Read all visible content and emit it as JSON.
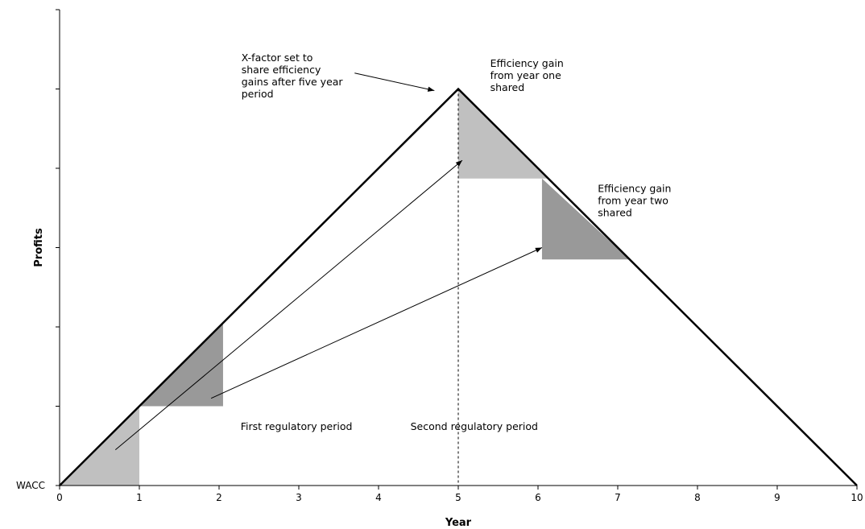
{
  "chart_data": {
    "type": "line",
    "title": "",
    "xlabel": "Year",
    "ylabel": "Profits",
    "xlim": [
      0,
      10
    ],
    "ylim": [
      0,
      6
    ],
    "x_ticks": [
      "0",
      "1",
      "2",
      "3",
      "4",
      "5",
      "6",
      "7",
      "8",
      "9",
      "10"
    ],
    "y_tick_count": 7,
    "y_baseline_label": "WACC",
    "grid": false,
    "legend": "none",
    "series": [
      {
        "x": [
          0,
          5,
          10
        ],
        "y": [
          0,
          5,
          0
        ]
      }
    ],
    "divider_x": 5,
    "shaded_regions": [
      {
        "color": "#c0c0c0",
        "points": [
          [
            0,
            0
          ],
          [
            1,
            0
          ],
          [
            1,
            1
          ]
        ]
      },
      {
        "color": "#999999",
        "points": [
          [
            1,
            1
          ],
          [
            2.05,
            1
          ],
          [
            2.05,
            2.05
          ]
        ]
      },
      {
        "color": "#c0c0c0",
        "points": [
          [
            5,
            5
          ],
          [
            5,
            3.87
          ],
          [
            6.13,
            3.87
          ]
        ]
      },
      {
        "color": "#999999",
        "points": [
          [
            6.05,
            3.87
          ],
          [
            6.05,
            2.85
          ],
          [
            7.15,
            2.85
          ]
        ]
      }
    ],
    "arrows": [
      {
        "from": [
          0.7,
          0.45
        ],
        "to": [
          5.05,
          4.1
        ]
      },
      {
        "from": [
          1.9,
          1.1
        ],
        "to": [
          6.05,
          3.0
        ]
      },
      {
        "from": [
          3.7,
          5.2
        ],
        "to": [
          4.7,
          4.98
        ]
      }
    ],
    "annotations": [
      {
        "lines": [
          "X-factor set to",
          "share efficiency",
          "gains after five year",
          "period"
        ],
        "x": 2.28,
        "y": 5.35
      },
      {
        "lines": [
          "Efficiency gain",
          "from year one",
          "shared"
        ],
        "x": 5.4,
        "y": 5.28
      },
      {
        "lines": [
          "Efficiency gain",
          "from year two",
          "shared"
        ],
        "x": 6.75,
        "y": 3.7
      },
      {
        "lines": [
          "First regulatory period"
        ],
        "x": 2.27,
        "y": 0.7
      },
      {
        "lines": [
          "Second  regulatory period"
        ],
        "x": 4.4,
        "y": 0.7
      }
    ]
  }
}
